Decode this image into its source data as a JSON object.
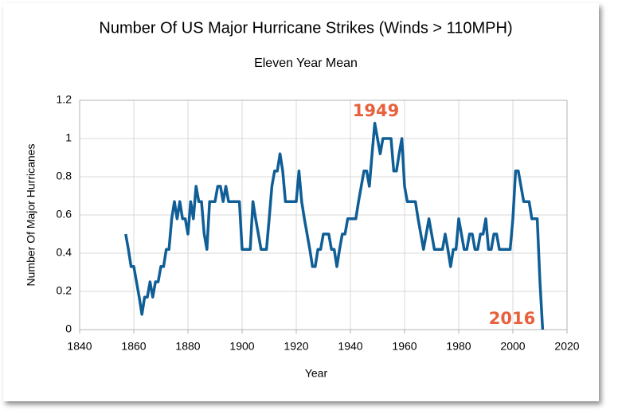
{
  "chart_data": {
    "type": "line",
    "title": "Number Of US Major Hurricane Strikes (Winds > 110MPH)",
    "subtitle": "Eleven Year Mean",
    "x_label": "Year",
    "y_label": "Number Of Major Hurricanes",
    "xlim": [
      1840,
      2020
    ],
    "xticks": [
      1840,
      1860,
      1880,
      1900,
      1920,
      1940,
      1960,
      1980,
      2000,
      2020
    ],
    "ylim": [
      0,
      1.2
    ],
    "yticks": [
      0,
      0.2,
      0.4,
      0.6,
      0.8,
      1,
      1.2
    ],
    "grid": true,
    "annotations": [
      "1949",
      "2016"
    ],
    "x": [
      1857,
      1858,
      1859,
      1860,
      1861,
      1862,
      1863,
      1864,
      1865,
      1866,
      1867,
      1868,
      1869,
      1870,
      1871,
      1872,
      1873,
      1874,
      1875,
      1876,
      1877,
      1878,
      1879,
      1880,
      1881,
      1882,
      1883,
      1884,
      1885,
      1886,
      1887,
      1888,
      1889,
      1890,
      1891,
      1892,
      1893,
      1894,
      1895,
      1896,
      1897,
      1898,
      1899,
      1900,
      1901,
      1902,
      1903,
      1904,
      1905,
      1906,
      1907,
      1908,
      1909,
      1910,
      1911,
      1912,
      1913,
      1914,
      1915,
      1916,
      1917,
      1918,
      1919,
      1920,
      1921,
      1922,
      1923,
      1924,
      1925,
      1926,
      1927,
      1928,
      1929,
      1930,
      1931,
      1932,
      1933,
      1934,
      1935,
      1936,
      1937,
      1938,
      1939,
      1940,
      1941,
      1942,
      1943,
      1944,
      1945,
      1946,
      1947,
      1948,
      1949,
      1950,
      1951,
      1952,
      1953,
      1954,
      1955,
      1956,
      1957,
      1958,
      1959,
      1960,
      1961,
      1962,
      1963,
      1964,
      1965,
      1966,
      1967,
      1968,
      1969,
      1970,
      1971,
      1972,
      1973,
      1974,
      1975,
      1976,
      1977,
      1978,
      1979,
      1980,
      1981,
      1982,
      1983,
      1984,
      1985,
      1986,
      1987,
      1988,
      1989,
      1990,
      1991,
      1992,
      1993,
      1994,
      1995,
      1996,
      1997,
      1998,
      1999,
      2000,
      2001,
      2002,
      2003,
      2004,
      2005,
      2006,
      2007,
      2008,
      2009,
      2010,
      2011
    ],
    "series": [
      {
        "name": "Eleven Year Mean",
        "color": "#0f5e96",
        "values": [
          0.5,
          0.42,
          0.33,
          0.33,
          0.25,
          0.17,
          0.08,
          0.17,
          0.17,
          0.25,
          0.17,
          0.25,
          0.25,
          0.33,
          0.33,
          0.42,
          0.42,
          0.58,
          0.67,
          0.58,
          0.67,
          0.58,
          0.58,
          0.5,
          0.67,
          0.58,
          0.75,
          0.67,
          0.67,
          0.5,
          0.42,
          0.67,
          0.67,
          0.67,
          0.75,
          0.75,
          0.67,
          0.75,
          0.67,
          0.67,
          0.67,
          0.67,
          0.67,
          0.42,
          0.42,
          0.42,
          0.42,
          0.67,
          0.58,
          0.5,
          0.42,
          0.42,
          0.42,
          0.58,
          0.75,
          0.83,
          0.83,
          0.92,
          0.83,
          0.67,
          0.67,
          0.67,
          0.67,
          0.67,
          0.83,
          0.67,
          0.58,
          0.5,
          0.42,
          0.33,
          0.33,
          0.42,
          0.42,
          0.5,
          0.5,
          0.5,
          0.42,
          0.42,
          0.33,
          0.42,
          0.5,
          0.5,
          0.58,
          0.58,
          0.58,
          0.58,
          0.67,
          0.75,
          0.83,
          0.83,
          0.75,
          0.92,
          1.08,
          1.0,
          0.92,
          1.0,
          1.0,
          1.0,
          1.0,
          0.83,
          0.83,
          0.92,
          1.0,
          0.75,
          0.67,
          0.67,
          0.67,
          0.67,
          0.58,
          0.5,
          0.42,
          0.5,
          0.58,
          0.5,
          0.42,
          0.42,
          0.42,
          0.42,
          0.5,
          0.42,
          0.33,
          0.42,
          0.42,
          0.58,
          0.5,
          0.42,
          0.42,
          0.5,
          0.5,
          0.42,
          0.42,
          0.5,
          0.5,
          0.58,
          0.42,
          0.42,
          0.5,
          0.5,
          0.42,
          0.42,
          0.42,
          0.42,
          0.42,
          0.58,
          0.83,
          0.83,
          0.75,
          0.67,
          0.67,
          0.67,
          0.58,
          0.58,
          0.58,
          0.25,
          0
        ]
      }
    ]
  }
}
